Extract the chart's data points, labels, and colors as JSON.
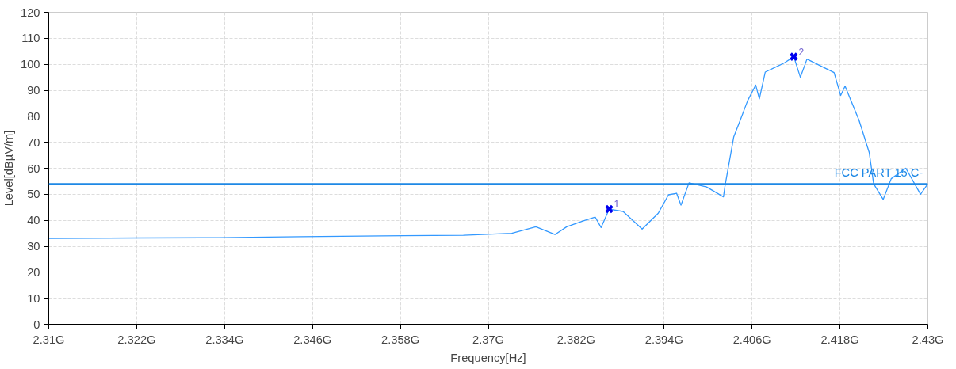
{
  "chart_data": {
    "type": "line",
    "xlabel": "Frequency[Hz]",
    "ylabel": "Level[dBµV/m]",
    "xlim": [
      2.31,
      2.43
    ],
    "ylim": [
      0,
      120
    ],
    "xticks": [
      {
        "value": 2.31,
        "label": "2.31G"
      },
      {
        "value": 2.322,
        "label": "2.322G"
      },
      {
        "value": 2.334,
        "label": "2.334G"
      },
      {
        "value": 2.346,
        "label": "2.346G"
      },
      {
        "value": 2.358,
        "label": "2.358G"
      },
      {
        "value": 2.37,
        "label": "2.37G"
      },
      {
        "value": 2.382,
        "label": "2.382G"
      },
      {
        "value": 2.394,
        "label": "2.394G"
      },
      {
        "value": 2.406,
        "label": "2.406G"
      },
      {
        "value": 2.418,
        "label": "2.418G"
      },
      {
        "value": 2.43,
        "label": "2.43G"
      }
    ],
    "yticks": [
      0,
      10,
      20,
      30,
      40,
      50,
      60,
      70,
      80,
      90,
      100,
      110,
      120
    ],
    "grid": true,
    "line_style": "solid",
    "series": [
      {
        "color": "#3399ff",
        "marker": "none",
        "x": [
          2.31,
          2.3222,
          2.3333,
          2.3444,
          2.3555,
          2.3666,
          2.3732,
          2.3765,
          2.3791,
          2.3807,
          2.3829,
          2.3846,
          2.3854,
          2.3865,
          2.3884,
          2.391,
          2.3932,
          2.3946,
          2.3957,
          2.3963,
          2.3974,
          2.3998,
          2.4021,
          2.4023,
          2.4035,
          2.4046,
          2.4054,
          2.4065,
          2.407,
          2.4078,
          2.4093,
          2.4104,
          2.4117,
          2.4126,
          2.4135,
          2.4172,
          2.4181,
          2.4187,
          2.4206,
          2.422,
          2.4226,
          2.4239,
          2.425,
          2.427,
          2.429,
          2.43
        ],
        "values": [
          33,
          33.2,
          33.3,
          33.7,
          34,
          34.2,
          35,
          37.5,
          34.5,
          37.5,
          39.7,
          41.2,
          37.2,
          44.3,
          43.4,
          36.6,
          42.7,
          49.8,
          50.4,
          45.8,
          54.4,
          52.8,
          49,
          53,
          72,
          80,
          86,
          92,
          86.7,
          97,
          99,
          100.5,
          102.9,
          95,
          102,
          96.8,
          88,
          91.6,
          78.5,
          66,
          54,
          48,
          56,
          60,
          50,
          54
        ]
      },
      {
        "type": "scatter",
        "color": "#0000ee",
        "marker": "cross",
        "x": [
          2.3865,
          2.4117
        ],
        "values": [
          44.3,
          102.9
        ]
      }
    ],
    "annotations": [
      {
        "text": "1",
        "x": 2.3865,
        "y": 44.3
      },
      {
        "text": "2",
        "x": 2.4117,
        "y": 102.9
      }
    ],
    "ref_lines": [
      {
        "axis": "y",
        "value": 54,
        "label": "FCC PART 15 C-",
        "color": "#1e88e5",
        "line_style": "solid"
      }
    ]
  }
}
